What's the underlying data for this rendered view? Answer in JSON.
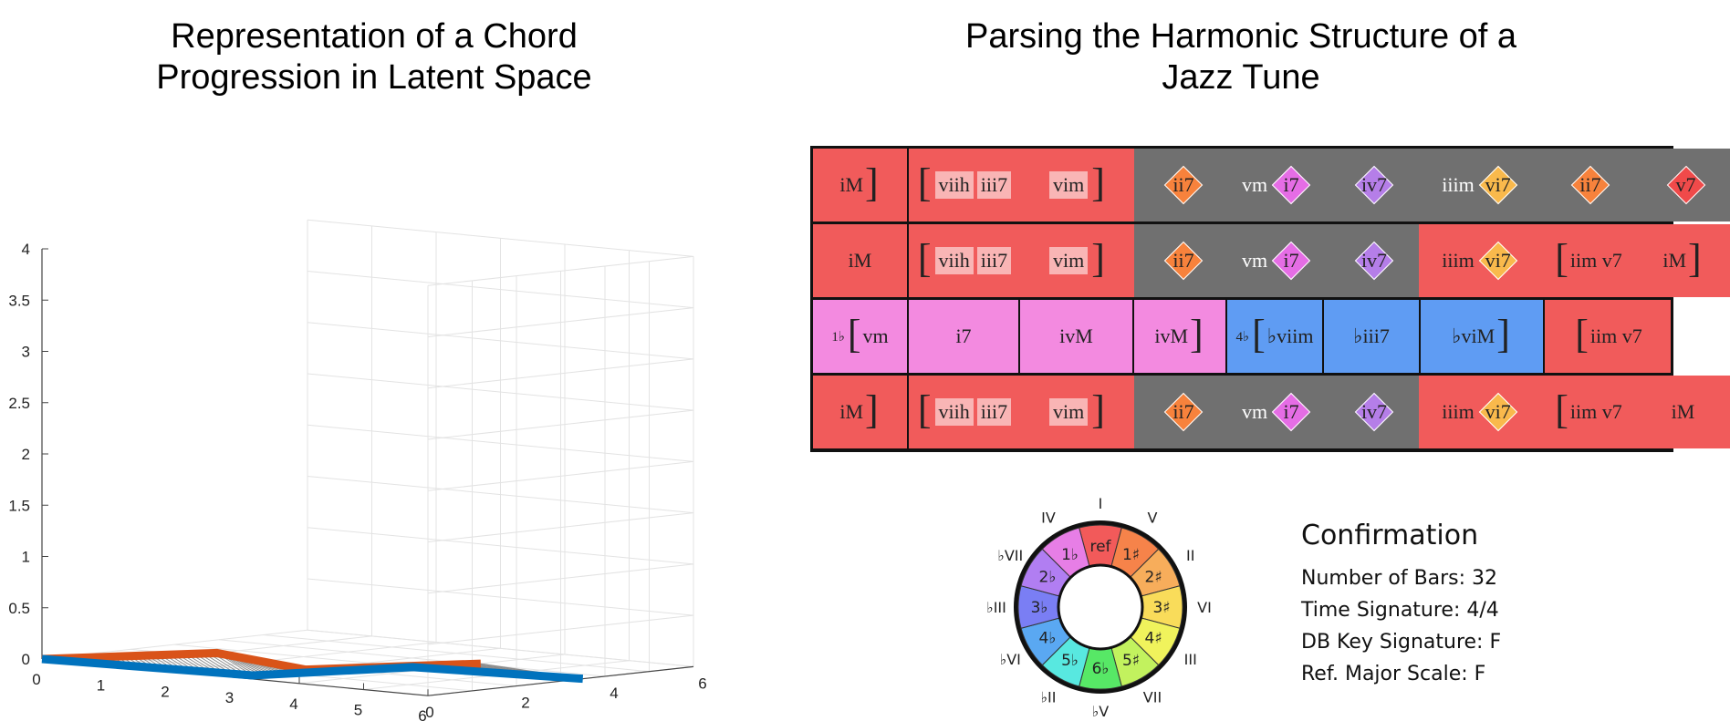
{
  "left_title": "Representation of a Chord Progression in Latent Space",
  "right_title": "Parsing the Harmonic Structure of a Jazz Tune",
  "chart_data": {
    "type": "line",
    "z_ticks": [
      "0",
      "0.5",
      "1",
      "1.5",
      "2",
      "2.5",
      "3",
      "3.5",
      "4"
    ],
    "x_ticks": [
      "0",
      "1",
      "2",
      "3",
      "4",
      "5",
      "6"
    ],
    "y_ticks": [
      "0",
      "2",
      "4",
      "6"
    ],
    "series": [
      {
        "color": "#d95319",
        "points": [
          [
            0,
            0,
            0
          ],
          [
            1,
            2.5,
            0
          ],
          [
            3,
            1.6,
            0
          ],
          [
            4,
            4.1,
            0
          ]
        ]
      },
      {
        "color": "#0072bd",
        "points": [
          [
            0,
            0,
            0
          ],
          [
            3,
            0.4,
            0
          ],
          [
            3.7,
            3,
            0
          ],
          [
            6,
            3.5,
            0
          ]
        ]
      }
    ]
  },
  "harmony": {
    "rows": [
      [
        {
          "bg": "#f15b5b",
          "items": [
            {
              "t": "iM"
            },
            {
              "b": "]"
            }
          ]
        },
        {
          "bg": "#f15b5b",
          "items": [
            {
              "b": "["
            },
            {
              "bar": "viih"
            },
            {
              "bar": "iii7"
            }
          ]
        },
        {
          "bg": "#f15b5b",
          "items": [
            {
              "bar": "vim"
            },
            {
              "b": "]"
            }
          ]
        },
        {
          "bg": "#707070",
          "items": [
            {
              "d": "ii7",
              "dc": "#f7823c"
            }
          ]
        },
        {
          "bg": "#707070",
          "items": [
            {
              "tw": "vm"
            },
            {
              "d": "i7",
              "dc": "#e56de5"
            }
          ]
        },
        {
          "bg": "#707070",
          "items": [
            {
              "d": "iv7",
              "dc": "#b57ee8"
            }
          ]
        },
        {
          "bg": "#707070",
          "items": [
            {
              "tw": "iiim"
            },
            {
              "d": "vi7",
              "dc": "#f9b94c"
            }
          ]
        },
        {
          "bg": "#707070",
          "items": [
            {
              "d": "ii7",
              "dc": "#f7823c"
            }
          ]
        },
        {
          "bg": "#707070",
          "items": [
            {
              "d": "v7",
              "dc": "#f04a4a"
            }
          ]
        }
      ],
      [
        {
          "bg": "#f15b5b",
          "items": [
            {
              "t": "iM"
            }
          ]
        },
        {
          "bg": "#f15b5b",
          "items": [
            {
              "b": "["
            },
            {
              "bar": "viih"
            },
            {
              "bar": "iii7"
            }
          ]
        },
        {
          "bg": "#f15b5b",
          "items": [
            {
              "bar": "vim"
            },
            {
              "b": "]"
            }
          ]
        },
        {
          "bg": "#707070",
          "items": [
            {
              "d": "ii7",
              "dc": "#f7823c"
            }
          ]
        },
        {
          "bg": "#707070",
          "items": [
            {
              "tw": "vm"
            },
            {
              "d": "i7",
              "dc": "#e56de5"
            }
          ]
        },
        {
          "bg": "#707070",
          "items": [
            {
              "d": "iv7",
              "dc": "#b57ee8"
            }
          ]
        },
        {
          "bg": "#f15b5b",
          "items": [
            {
              "t": "iiim"
            },
            {
              "d": "vi7",
              "dc": "#f9b94c"
            }
          ]
        },
        {
          "bg": "#f15b5b",
          "items": [
            {
              "b": "["
            },
            {
              "t": "iim v7"
            }
          ]
        },
        {
          "bg": "#f15b5b",
          "items": [
            {
              "t": "iM"
            },
            {
              "b": "]"
            }
          ]
        }
      ],
      [
        {
          "bg": "#f38ae0",
          "items": [
            {
              "s": "1♭"
            },
            {
              "b": "["
            },
            {
              "t": "vm"
            }
          ]
        },
        {
          "bg": "#f38ae0",
          "items": [
            {
              "t": "i7"
            }
          ]
        },
        {
          "bg": "#f38ae0",
          "items": [
            {
              "t": "ivM"
            }
          ]
        },
        {
          "bg": "#f38ae0",
          "items": [
            {
              "t": "ivM"
            },
            {
              "b": "]"
            }
          ]
        },
        {
          "bg": "#5f9cf3",
          "items": [
            {
              "s": "4♭"
            },
            {
              "b": "["
            },
            {
              "t": "♭viim"
            }
          ]
        },
        {
          "bg": "#5f9cf3",
          "items": [
            {
              "t": "♭iii7"
            }
          ]
        },
        {
          "bg": "#5f9cf3",
          "items": [
            {
              "t": "♭viM"
            },
            {
              "b": "]"
            }
          ]
        },
        {
          "bg": "#f15b5b",
          "items": [
            {
              "b": "["
            },
            {
              "t": "iim v7"
            }
          ]
        }
      ],
      [
        {
          "bg": "#f15b5b",
          "items": [
            {
              "t": "iM"
            },
            {
              "b": "]"
            }
          ]
        },
        {
          "bg": "#f15b5b",
          "items": [
            {
              "b": "["
            },
            {
              "bar": "viih"
            },
            {
              "bar": "iii7"
            }
          ]
        },
        {
          "bg": "#f15b5b",
          "items": [
            {
              "bar": "vim"
            },
            {
              "b": "]"
            }
          ]
        },
        {
          "bg": "#707070",
          "items": [
            {
              "d": "ii7",
              "dc": "#f7823c"
            }
          ]
        },
        {
          "bg": "#707070",
          "items": [
            {
              "tw": "vm"
            },
            {
              "d": "i7",
              "dc": "#e56de5"
            }
          ]
        },
        {
          "bg": "#707070",
          "items": [
            {
              "d": "iv7",
              "dc": "#b57ee8"
            }
          ]
        },
        {
          "bg": "#f15b5b",
          "items": [
            {
              "t": "iiim"
            },
            {
              "d": "vi7",
              "dc": "#f9b94c"
            }
          ]
        },
        {
          "bg": "#f15b5b",
          "items": [
            {
              "b": "["
            },
            {
              "t": "iim v7"
            }
          ]
        },
        {
          "bg": "#f15b5b",
          "items": [
            {
              "t": "iM"
            }
          ]
        }
      ]
    ]
  },
  "wheel": {
    "inner": [
      {
        "label": "ref",
        "color": "#f25a5a"
      },
      {
        "label": "1♯",
        "color": "#f6834a"
      },
      {
        "label": "2♯",
        "color": "#f7ad5b"
      },
      {
        "label": "3♯",
        "color": "#f9dc5a"
      },
      {
        "label": "4♯",
        "color": "#f0f35c"
      },
      {
        "label": "5♯",
        "color": "#c2f25e"
      },
      {
        "label": "6♭",
        "color": "#57e866"
      },
      {
        "label": "5♭",
        "color": "#58e8e0"
      },
      {
        "label": "4♭",
        "color": "#5aa8f2"
      },
      {
        "label": "3♭",
        "color": "#7a7ef4"
      },
      {
        "label": "2♭",
        "color": "#b17ef2"
      },
      {
        "label": "1♭",
        "color": "#e77ee6"
      }
    ],
    "outer": [
      "I",
      "V",
      "II",
      "VI",
      "III",
      "VII",
      "♭V",
      "♭II",
      "♭VI",
      "♭III",
      "♭VII",
      "IV"
    ]
  },
  "confirmation": {
    "heading": "Confirmation",
    "rows": [
      "Number of Bars: 32",
      "Time Signature: 4/4",
      "DB Key Signature: F",
      "Ref. Major Scale: F"
    ]
  }
}
